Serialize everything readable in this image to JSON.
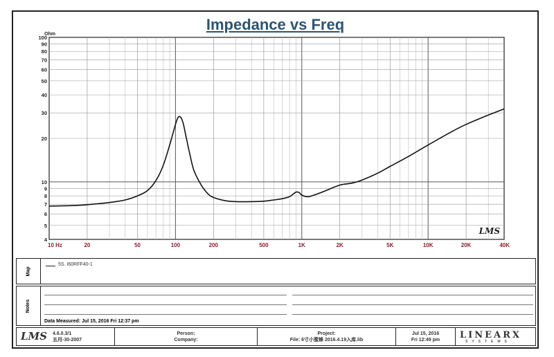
{
  "header": {
    "title": "Impedance vs Freq"
  },
  "chart_data": {
    "type": "line",
    "title": "Impedance vs Freq",
    "ylabel": "Ohm",
    "xlabel": "",
    "x_scale": "log",
    "y_scale": "log",
    "xlim": [
      10,
      40000
    ],
    "ylim": [
      4,
      100
    ],
    "x_tick_labels": [
      {
        "value": 10,
        "label": "10 Hz"
      },
      {
        "value": 20,
        "label": "20"
      },
      {
        "value": 50,
        "label": "50"
      },
      {
        "value": 100,
        "label": "100"
      },
      {
        "value": 200,
        "label": "200"
      },
      {
        "value": 500,
        "label": "500"
      },
      {
        "value": 1000,
        "label": "1K"
      },
      {
        "value": 2000,
        "label": "2K"
      },
      {
        "value": 5000,
        "label": "5K"
      },
      {
        "value": 10000,
        "label": "10K"
      },
      {
        "value": 20000,
        "label": "20K"
      },
      {
        "value": 40000,
        "label": "40K"
      }
    ],
    "y_tick_labels": [
      {
        "value": 4,
        "label": "4"
      },
      {
        "value": 5,
        "label": "5"
      },
      {
        "value": 6,
        "label": "6"
      },
      {
        "value": 7,
        "label": "7"
      },
      {
        "value": 8,
        "label": "8"
      },
      {
        "value": 9,
        "label": "9"
      },
      {
        "value": 10,
        "label": "10"
      },
      {
        "value": 20,
        "label": "20"
      },
      {
        "value": 30,
        "label": "30"
      },
      {
        "value": 40,
        "label": "40"
      },
      {
        "value": 50,
        "label": "50"
      },
      {
        "value": 60,
        "label": "60"
      },
      {
        "value": 70,
        "label": "70"
      },
      {
        "value": 80,
        "label": "80"
      },
      {
        "value": 90,
        "label": "90"
      },
      {
        "value": 100,
        "label": "100"
      }
    ],
    "grid": true,
    "watermark": "LMS",
    "series": [
      {
        "name": "5S. I60RFF40-1",
        "color": "#111111",
        "x": [
          10,
          15,
          20,
          30,
          40,
          50,
          60,
          70,
          80,
          90,
          100,
          105,
          110,
          115,
          120,
          130,
          140,
          160,
          180,
          200,
          250,
          300,
          400,
          500,
          600,
          700,
          800,
          850,
          900,
          950,
          1000,
          1100,
          1200,
          1500,
          2000,
          2500,
          3000,
          4000,
          5000,
          7000,
          10000,
          15000,
          20000,
          30000,
          40000
        ],
        "y": [
          6.8,
          6.85,
          6.95,
          7.2,
          7.5,
          8.0,
          8.7,
          10.2,
          13.0,
          18.0,
          25.0,
          28.0,
          28.0,
          25.5,
          21.5,
          15.5,
          12.0,
          9.5,
          8.3,
          7.8,
          7.4,
          7.3,
          7.3,
          7.35,
          7.5,
          7.65,
          7.9,
          8.2,
          8.5,
          8.45,
          8.1,
          7.9,
          8.0,
          8.6,
          9.5,
          9.8,
          10.3,
          11.5,
          12.8,
          15.0,
          18.0,
          22.0,
          25.0,
          29.0,
          32.0
        ]
      }
    ]
  },
  "legend_panel": {
    "label": "Map",
    "entry": "5S. I60RFF40-1"
  },
  "notes_panel": {
    "label": "Notes",
    "measured": "Data Measured: Jul 15, 2016 Fri 12:37 pm"
  },
  "footer": {
    "logo": "LMS",
    "version": "4.6.0.3/1",
    "build_date": "五月-30-2007",
    "person_label": "Person:",
    "company_label": "Company:",
    "project_label": "Project:",
    "file_text": "File: 6寸小蜜蜂 2016.4.19入库.lib",
    "date": "Jul 15, 2016",
    "time": "Fri 12:49 pm",
    "brand": "LINEARX",
    "brand_sub": "SYSTEMS"
  }
}
